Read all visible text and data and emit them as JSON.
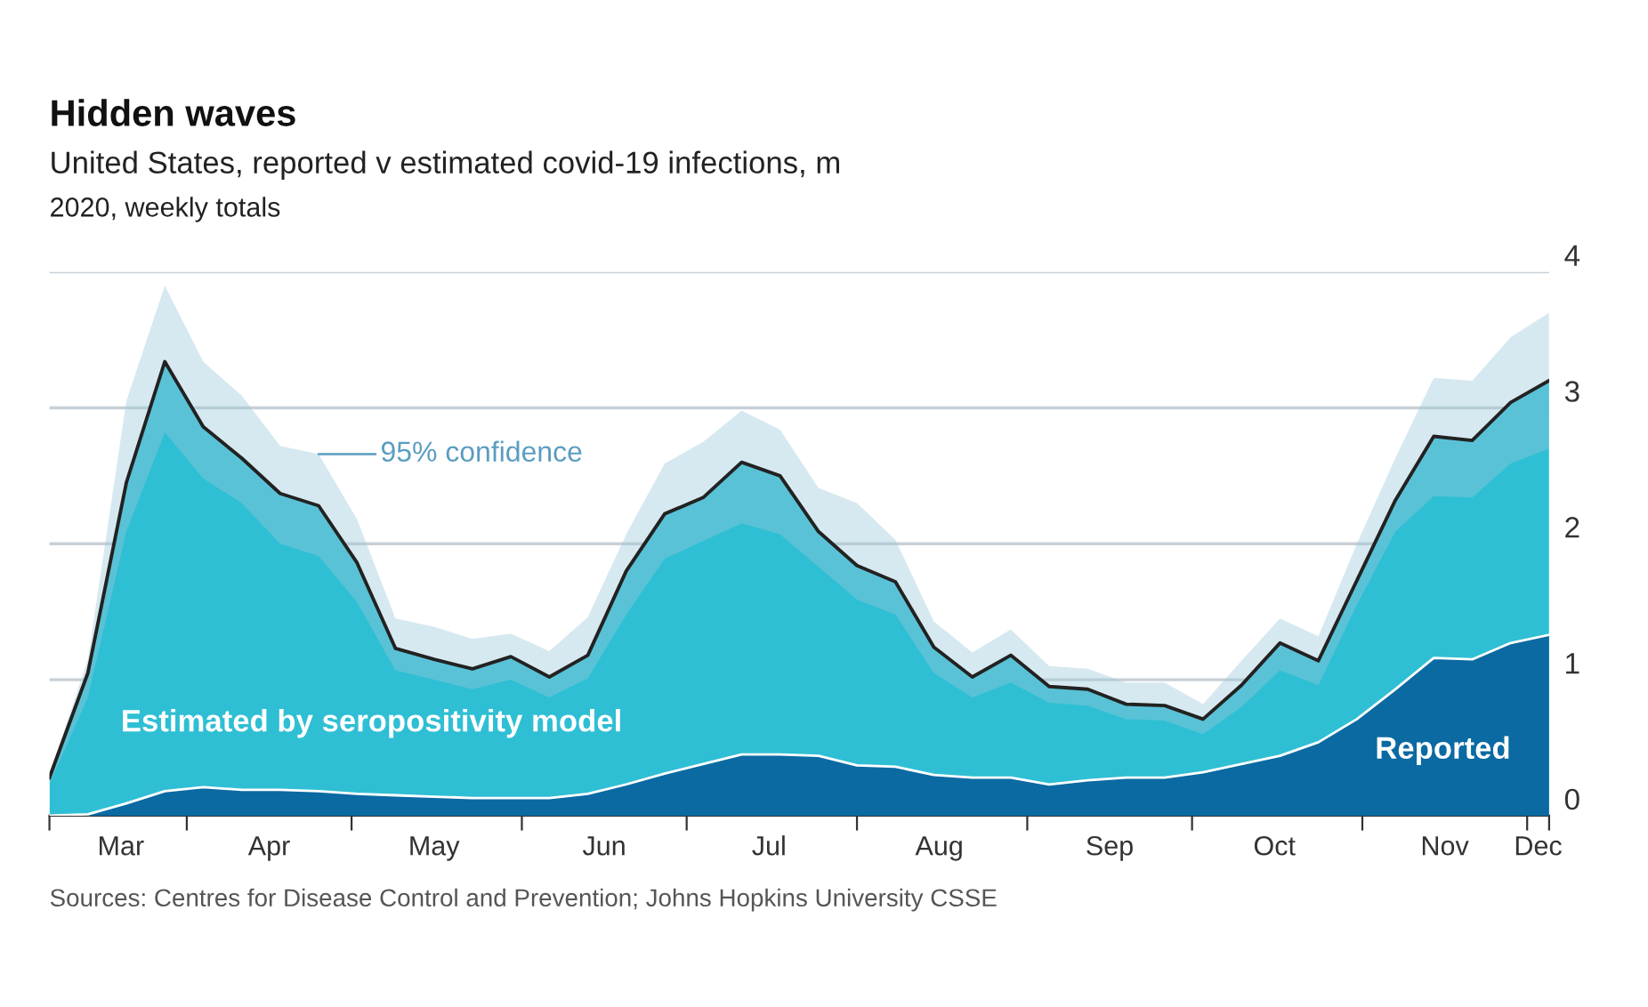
{
  "chart_data": {
    "type": "area",
    "title": "Hidden waves",
    "subtitle": "United States, reported v estimated covid-19 infections, m",
    "annotations": [
      "2020, weekly totals",
      {
        "text": "95% confidence",
        "x": "2020-04-25",
        "y": 2.66
      },
      "Sources: Centres for Disease Control and Prevention; Johns Hopkins University CSSE"
    ],
    "x": [
      "2020-03-07",
      "2020-03-14",
      "2020-03-21",
      "2020-03-28",
      "2020-04-04",
      "2020-04-11",
      "2020-04-18",
      "2020-04-25",
      "2020-05-02",
      "2020-05-09",
      "2020-05-16",
      "2020-05-23",
      "2020-05-30",
      "2020-06-06",
      "2020-06-13",
      "2020-06-20",
      "2020-06-27",
      "2020-07-04",
      "2020-07-11",
      "2020-07-18",
      "2020-07-25",
      "2020-08-01",
      "2020-08-08",
      "2020-08-15",
      "2020-08-22",
      "2020-08-29",
      "2020-09-05",
      "2020-09-12",
      "2020-09-19",
      "2020-09-26",
      "2020-10-03",
      "2020-10-10",
      "2020-10-17",
      "2020-10-24",
      "2020-10-31",
      "2020-11-07",
      "2020-11-14",
      "2020-11-21",
      "2020-11-28",
      "2020-12-05"
    ],
    "series": [
      {
        "name": "Estimated by seropositivity model",
        "color": "#2fbfd4",
        "values": [
          0.28,
          1.05,
          2.45,
          3.34,
          2.86,
          2.63,
          2.37,
          2.28,
          1.86,
          1.23,
          1.15,
          1.08,
          1.17,
          1.02,
          1.18,
          1.8,
          2.22,
          2.34,
          2.6,
          2.5,
          2.09,
          1.84,
          1.72,
          1.24,
          1.02,
          1.18,
          0.95,
          0.93,
          0.82,
          0.81,
          0.71,
          0.96,
          1.27,
          1.14,
          1.73,
          2.32,
          2.79,
          2.76,
          3.04,
          3.2
        ],
        "lower": [
          0.23,
          0.87,
          2.09,
          2.82,
          2.48,
          2.3,
          2.0,
          1.91,
          1.57,
          1.07,
          1.0,
          0.93,
          1.0,
          0.87,
          1.01,
          1.48,
          1.89,
          2.02,
          2.15,
          2.07,
          1.83,
          1.59,
          1.48,
          1.05,
          0.87,
          0.98,
          0.83,
          0.81,
          0.71,
          0.7,
          0.6,
          0.8,
          1.07,
          0.96,
          1.55,
          2.09,
          2.35,
          2.34,
          2.59,
          2.7
        ],
        "upper": [
          0.3,
          1.15,
          3.05,
          3.9,
          3.34,
          3.09,
          2.72,
          2.66,
          2.18,
          1.45,
          1.39,
          1.3,
          1.34,
          1.21,
          1.46,
          2.07,
          2.59,
          2.75,
          2.98,
          2.84,
          2.41,
          2.3,
          2.03,
          1.43,
          1.2,
          1.37,
          1.1,
          1.08,
          0.98,
          0.98,
          0.82,
          1.14,
          1.45,
          1.32,
          2.0,
          2.63,
          3.22,
          3.2,
          3.52,
          3.7
        ]
      },
      {
        "name": "Reported",
        "color": "#0b6aa2",
        "values": [
          0.0,
          0.01,
          0.09,
          0.18,
          0.21,
          0.19,
          0.19,
          0.18,
          0.16,
          0.15,
          0.14,
          0.13,
          0.13,
          0.13,
          0.16,
          0.23,
          0.31,
          0.38,
          0.45,
          0.45,
          0.44,
          0.37,
          0.36,
          0.3,
          0.28,
          0.28,
          0.23,
          0.26,
          0.28,
          0.28,
          0.32,
          0.38,
          0.44,
          0.54,
          0.71,
          0.93,
          1.16,
          1.15,
          1.27,
          1.33
        ]
      }
    ],
    "xlim": [
      "2020-03-07",
      "2020-12-05"
    ],
    "xticks": [
      {
        "value": "2020-03-07",
        "label": null
      },
      {
        "value": "2020-04-01",
        "label": null
      },
      {
        "value": "2020-05-01",
        "label": null
      },
      {
        "value": "2020-06-01",
        "label": null
      },
      {
        "value": "2020-07-01",
        "label": null
      },
      {
        "value": "2020-08-01",
        "label": null
      },
      {
        "value": "2020-09-01",
        "label": null
      },
      {
        "value": "2020-10-01",
        "label": null
      },
      {
        "value": "2020-11-01",
        "label": null
      },
      {
        "value": "2020-12-01",
        "label": null
      },
      {
        "value": "2020-12-05",
        "label": null
      },
      {
        "value": "2020-03-20",
        "label": "Mar"
      },
      {
        "value": "2020-04-16",
        "label": "Apr"
      },
      {
        "value": "2020-05-16",
        "label": "May"
      },
      {
        "value": "2020-06-16",
        "label": "Jun"
      },
      {
        "value": "2020-07-16",
        "label": "Jul"
      },
      {
        "value": "2020-08-16",
        "label": "Aug"
      },
      {
        "value": "2020-09-16",
        "label": "Sep"
      },
      {
        "value": "2020-10-16",
        "label": "Oct"
      },
      {
        "value": "2020-11-16",
        "label": "Nov"
      },
      {
        "value": "2020-12-03",
        "label": "Dec"
      }
    ],
    "ylim": [
      0,
      4
    ],
    "yticks": [
      0,
      1,
      2,
      3,
      4
    ],
    "grid": "y",
    "legend": false
  }
}
